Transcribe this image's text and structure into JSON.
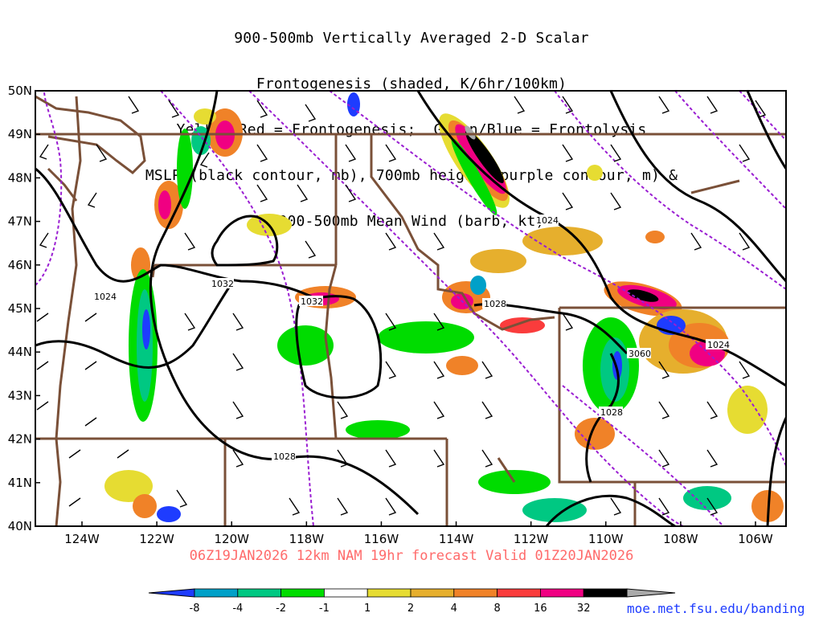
{
  "header": {
    "title_lines": [
      "900-500mb Vertically Averaged 2-D Scalar",
      "Frontogenesis (shaded, K/6hr/100km)",
      "Yellow/Red = Frontogenesis;  Green/Blue = Frontolysis",
      "MSLP (black contour, mb), 700mb height (purple contour, m) &",
      "900-500mb Mean Wind (barb, kt)"
    ]
  },
  "map": {
    "lat_labels": [
      "50N",
      "49N",
      "48N",
      "47N",
      "46N",
      "45N",
      "44N",
      "43N",
      "42N",
      "41N",
      "40N"
    ],
    "lon_labels": [
      "124W",
      "122W",
      "120W",
      "118W",
      "116W",
      "114W",
      "112W",
      "110W",
      "108W",
      "106W"
    ],
    "contour_labels": [
      "1032",
      "1024",
      "1032",
      "1028",
      "1024",
      "1028",
      "1024",
      "3060",
      "1028"
    ],
    "colors": {
      "mslp_contour": "#000000",
      "height_contour": "#9a1ed2",
      "borders": "#7a5038"
    }
  },
  "legend": {
    "ticks": [
      "-8",
      "-4",
      "-2",
      "-1",
      "1",
      "2",
      "4",
      "8",
      "16",
      "32"
    ],
    "colors": [
      "#1e3cff",
      "#00a0c8",
      "#00c882",
      "#00dc00",
      "#ffffff",
      "#e6dc32",
      "#e6af2d",
      "#f08228",
      "#fa3c3c",
      "#f00082",
      "#000000",
      "#aaaaaa"
    ]
  },
  "footer": {
    "run": "06Z19JAN2026 12km NAM 19hr forecast Valid 01Z20JAN2026",
    "credit": "moe.met.fsu.edu/banding"
  }
}
